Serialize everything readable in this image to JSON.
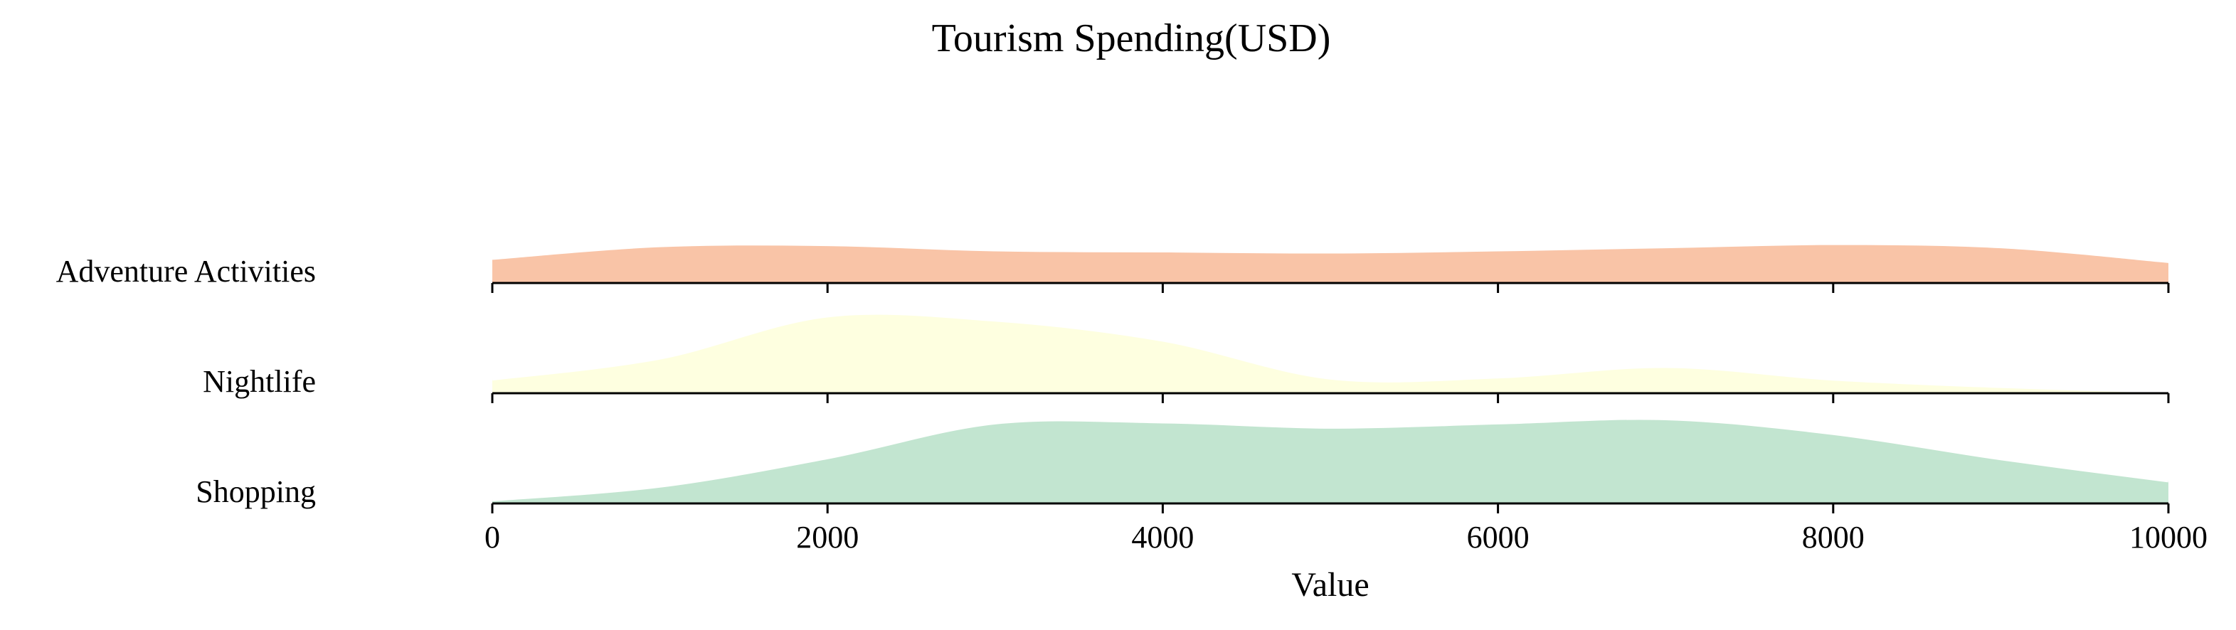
{
  "chart_data": {
    "type": "area",
    "title": "Tourism Spending(USD)",
    "xlabel": "Value",
    "ylabel": "",
    "xlim": [
      0,
      10000
    ],
    "x_ticks": [
      0,
      2000,
      4000,
      6000,
      8000,
      10000
    ],
    "x_tick_labels": [
      "0",
      "2000",
      "4000",
      "6000",
      "8000",
      "10000"
    ],
    "grid": false,
    "legend": "none",
    "x": [
      0,
      1000,
      2000,
      3000,
      4000,
      5000,
      6000,
      7000,
      8000,
      9000,
      10000
    ],
    "series": [
      {
        "name": "Adventure Activities",
        "color": "#f9c4a7",
        "values": [
          0.0022,
          0.0034,
          0.0035,
          0.003,
          0.0029,
          0.0028,
          0.003,
          0.0033,
          0.0036,
          0.0033,
          0.0019
        ]
      },
      {
        "name": "Nightlife",
        "color": "#feffe0",
        "values": [
          0.0014,
          0.0034,
          0.0074,
          0.007,
          0.0051,
          0.0015,
          0.0016,
          0.0026,
          0.0014,
          0.0007,
          0.0002
        ]
      },
      {
        "name": "Shopping",
        "color": "#c2e5d0",
        "values": [
          0.0004,
          0.0017,
          0.0044,
          0.0077,
          0.0078,
          0.0073,
          0.0077,
          0.0081,
          0.0067,
          0.0043,
          0.0022
        ]
      }
    ]
  }
}
